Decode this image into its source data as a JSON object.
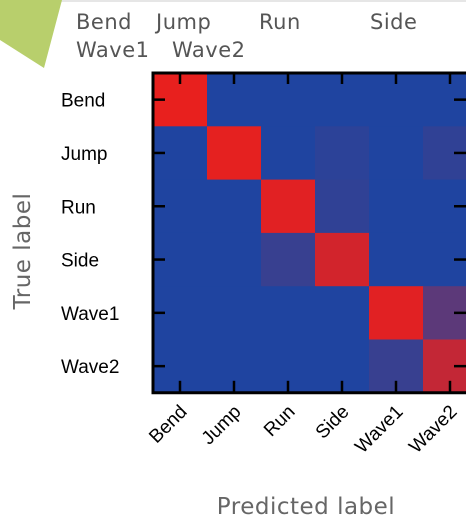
{
  "legend_row1": [
    "Bend",
    "Jump",
    "Run",
    "Side"
  ],
  "legend_row2": [
    "Wave1",
    "Wave2"
  ],
  "chart_data": {
    "type": "heatmap",
    "ylabel": "True label",
    "xlabel": "Predicted label",
    "rows": [
      "Bend",
      "Jump",
      "Run",
      "Side",
      "Wave1",
      "Wave2"
    ],
    "cols": [
      "Bend",
      "Jump",
      "Run",
      "Side",
      "Wave1",
      "Wave2"
    ],
    "values": [
      [
        1.0,
        0.0,
        0.0,
        0.0,
        0.0,
        0.0
      ],
      [
        0.0,
        0.98,
        0.0,
        0.02,
        0.0,
        0.03
      ],
      [
        0.0,
        0.0,
        0.95,
        0.03,
        0.0,
        0.0
      ],
      [
        0.0,
        0.0,
        0.05,
        0.85,
        0.0,
        0.0
      ],
      [
        0.0,
        0.0,
        0.0,
        0.0,
        0.95,
        0.18
      ],
      [
        0.0,
        0.0,
        0.0,
        0.0,
        0.05,
        0.75
      ]
    ],
    "colors": {
      "low": "#1f44a0",
      "high": "#e8201e"
    }
  }
}
